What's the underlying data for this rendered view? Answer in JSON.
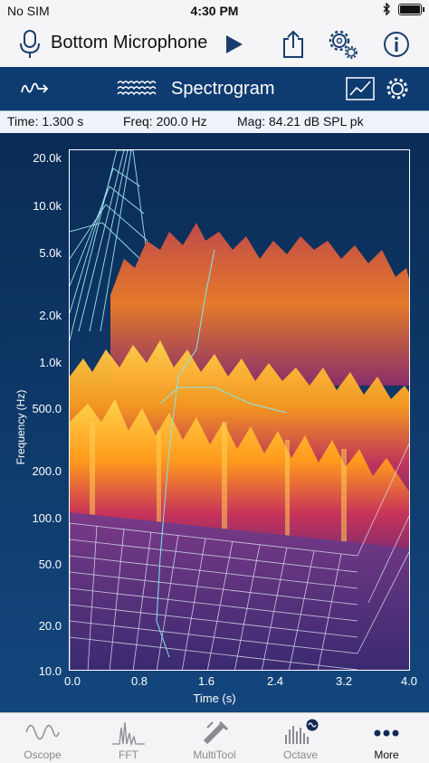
{
  "status_bar": {
    "carrier": "No SIM",
    "time": "4:30 PM"
  },
  "toolbar": {
    "title": "Bottom Microphone"
  },
  "mode_bar": {
    "label": "Spectrogram"
  },
  "readout": {
    "time": "Time: 1.300 s",
    "freq": "Freq: 200.0 Hz",
    "mag": "Mag: 84.21 dB SPL pk"
  },
  "plot": {
    "y_label": "Frequency (Hz)",
    "x_label": "Time (s)",
    "y_ticks": [
      "20.0k",
      "10.0k",
      "5.0k",
      "2.0k",
      "1.0k",
      "500.0",
      "200.0",
      "100.0",
      "50.0",
      "20.0",
      "10.0"
    ],
    "x_ticks": [
      "0.0",
      "0.8",
      "1.6",
      "2.4",
      "3.2",
      "4.0"
    ]
  },
  "tabs": [
    {
      "label": "Oscope",
      "icon": "oscope-icon"
    },
    {
      "label": "FFT",
      "icon": "fft-icon"
    },
    {
      "label": "MultiTool",
      "icon": "multitool-icon"
    },
    {
      "label": "Octave",
      "icon": "octave-icon"
    },
    {
      "label": "More",
      "icon": "more-icon"
    }
  ],
  "colors": {
    "accent": "#0e3b70",
    "surface_hot": "#ffb020",
    "surface_cool": "#6a2a7a"
  }
}
